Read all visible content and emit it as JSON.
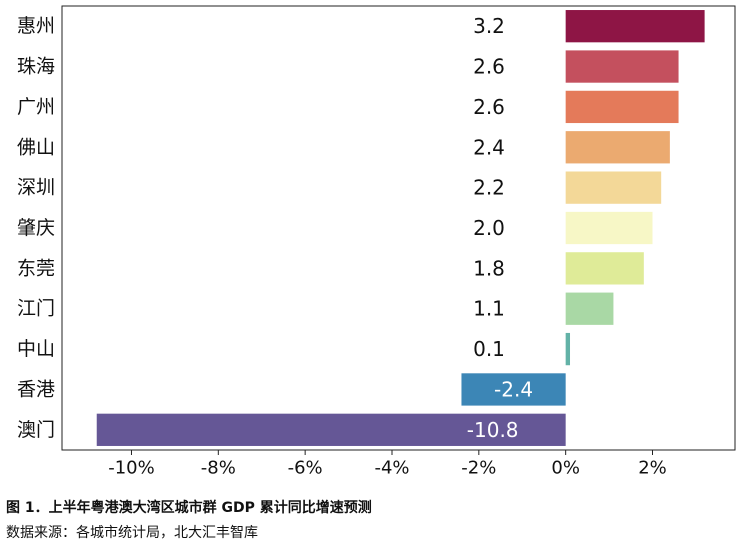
{
  "chart_data": {
    "type": "bar",
    "orientation": "horizontal",
    "categories": [
      "惠州",
      "珠海",
      "广州",
      "佛山",
      "深圳",
      "肇庆",
      "东莞",
      "江门",
      "中山",
      "香港",
      "澳门"
    ],
    "values": [
      3.2,
      2.6,
      2.6,
      2.4,
      2.2,
      2.0,
      1.8,
      1.1,
      0.1,
      -2.4,
      -10.8
    ],
    "value_labels": [
      "3.2",
      "2.6",
      "2.6",
      "2.4",
      "2.2",
      "2.0",
      "1.8",
      "1.1",
      "0.1",
      "-2.4",
      "-10.8"
    ],
    "colors": [
      "#8e1545",
      "#c4505e",
      "#e47a5a",
      "#ebaa70",
      "#f3d898",
      "#f7f7c6",
      "#dfeb98",
      "#a9d8a5",
      "#63b2a7",
      "#3c86b6",
      "#655796"
    ],
    "xticks": [
      -10,
      -8,
      -6,
      -4,
      -2,
      0,
      2
    ],
    "xtick_labels": [
      "-10%",
      "-8%",
      "-6%",
      "-4%",
      "-2%",
      "0%",
      "2%"
    ],
    "xlim": [
      -11.6,
      3.9
    ],
    "grid": false,
    "legend": "none"
  },
  "caption": {
    "title": "图 1．上半年粤港澳大湾区城市群 GDP 累计同比增速预测",
    "source": "数据来源：各城市统计局，北大汇丰智库"
  }
}
